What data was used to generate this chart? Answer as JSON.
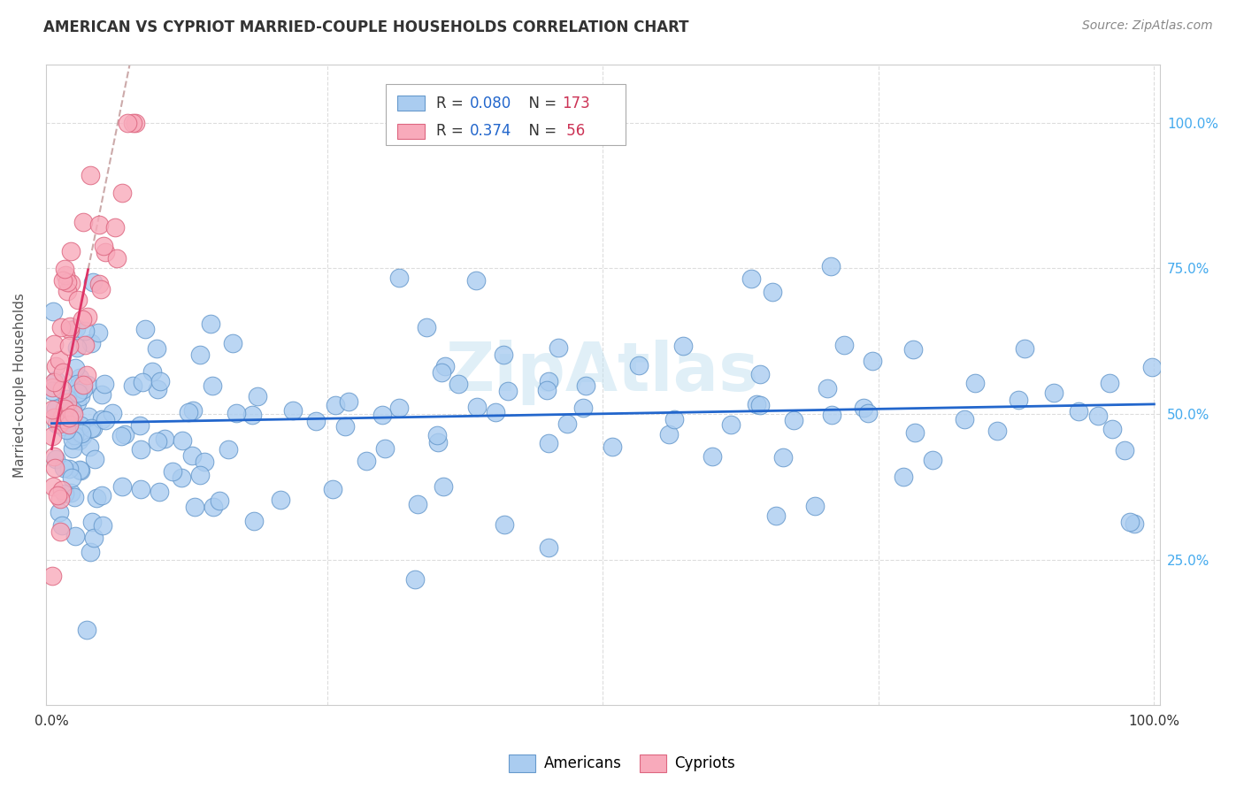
{
  "title": "AMERICAN VS CYPRIOT MARRIED-COUPLE HOUSEHOLDS CORRELATION CHART",
  "source": "Source: ZipAtlas.com",
  "ylabel": "Married-couple Households",
  "watermark": "ZipAtlas",
  "legend_americans": "Americans",
  "legend_cypriots": "Cypriots",
  "R_americans": 0.08,
  "N_americans": 173,
  "R_cypriots": 0.374,
  "N_cypriots": 56,
  "american_fill": "#aaccf0",
  "american_edge": "#6699cc",
  "cypriot_fill": "#f8aabb",
  "cypriot_edge": "#dd6680",
  "regression_am_color": "#2266cc",
  "regression_cy_color": "#dd3366",
  "regression_cy_dash_color": "#ccaaaa",
  "right_tick_color": "#44aaee",
  "background_color": "#ffffff",
  "grid_color": "#dddddd",
  "title_fontsize": 12,
  "source_fontsize": 10,
  "legend_text_color": "#333333",
  "legend_r_color": "#2266cc",
  "legend_n_color": "#cc3355"
}
